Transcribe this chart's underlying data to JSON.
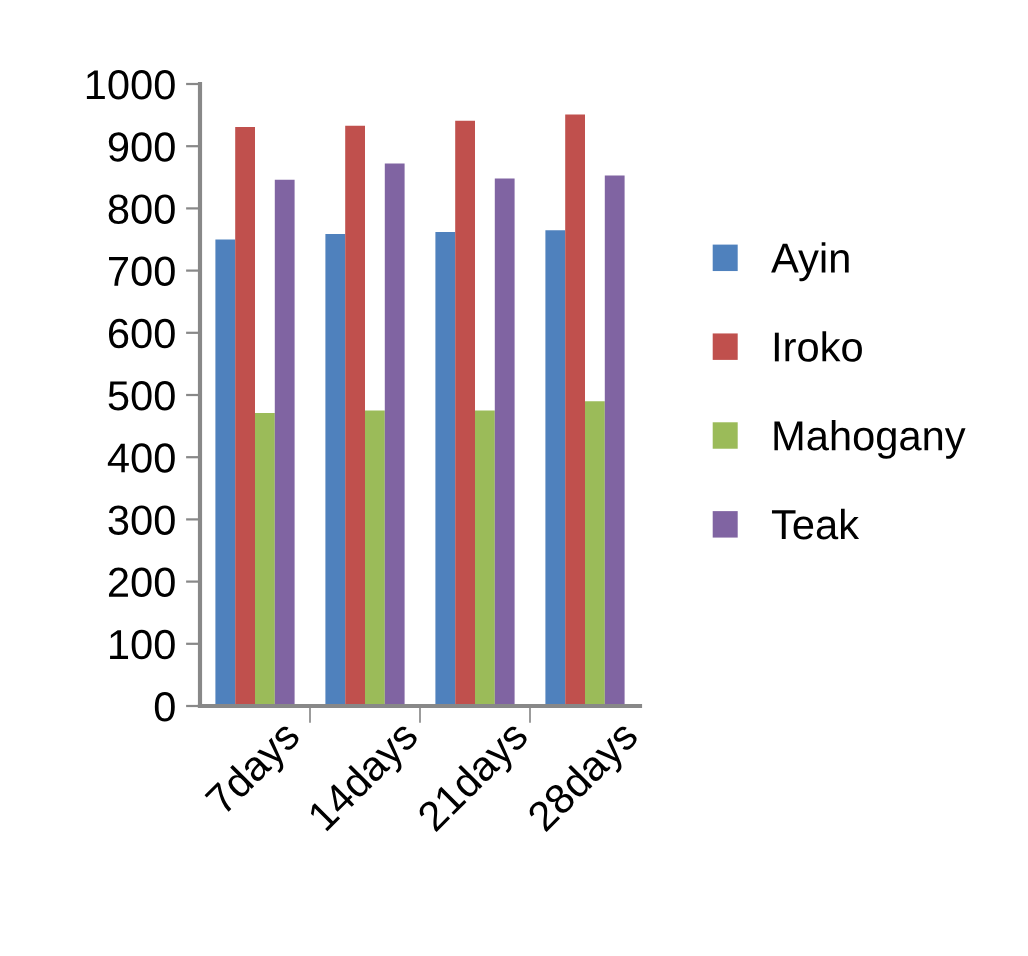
{
  "chart_data": {
    "type": "bar",
    "categories": [
      "7days",
      "14days",
      "21days",
      "28days"
    ],
    "series": [
      {
        "name": "Ayin",
        "color": "#4f81bd",
        "values": [
          750,
          759,
          762,
          765
        ]
      },
      {
        "name": "Iroko",
        "color": "#c0504d",
        "values": [
          931,
          933,
          941,
          951
        ]
      },
      {
        "name": "Mahogany",
        "color": "#9bbb59",
        "values": [
          471,
          475,
          475,
          490
        ]
      },
      {
        "name": "Teak",
        "color": "#8064a2",
        "values": [
          846,
          872,
          848,
          853
        ]
      }
    ],
    "ylim": [
      0,
      1000
    ],
    "yticks": [
      0,
      100,
      200,
      300,
      400,
      500,
      600,
      700,
      800,
      900,
      1000
    ],
    "grid": false,
    "legend": "right"
  }
}
